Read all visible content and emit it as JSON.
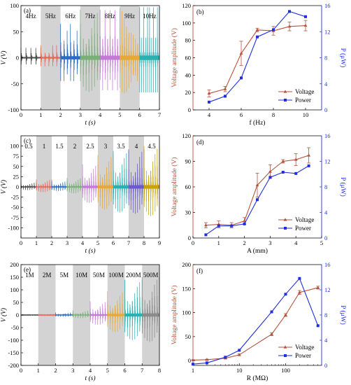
{
  "chart_data": [
    {
      "panel": "(a)",
      "type": "line",
      "xlabel": "t (s)",
      "ylabel": "V (V)",
      "xlim": [
        0,
        7
      ],
      "ylim": [
        -100,
        100
      ],
      "xticks": [
        0,
        1,
        2,
        3,
        4,
        5,
        6,
        7
      ],
      "yticks": [
        -100,
        -50,
        0,
        50,
        100
      ],
      "segments": [
        {
          "label": "4Hz",
          "t": [
            0,
            1
          ],
          "amplitude": 19,
          "bursts": 4,
          "color": "#505050",
          "shaded": false
        },
        {
          "label": "5Hz",
          "t": [
            1,
            2
          ],
          "amplitude": 24,
          "bursts": 5,
          "color": "#e46a5a",
          "shaded": true
        },
        {
          "label": "6Hz",
          "t": [
            2,
            3
          ],
          "amplitude": 65,
          "bursts": 6,
          "color": "#2c6cc4",
          "shaded": false
        },
        {
          "label": "7Hz",
          "t": [
            3,
            4
          ],
          "amplitude": 92,
          "bursts": 7,
          "color": "#78b078",
          "shaded": true
        },
        {
          "label": "8Hz",
          "t": [
            4,
            5
          ],
          "amplitude": 91,
          "bursts": 8,
          "color": "#c37ad6",
          "shaded": false
        },
        {
          "label": "9Hz",
          "t": [
            5,
            6
          ],
          "amplitude": 96,
          "bursts": 9,
          "color": "#e8a838",
          "shaded": true
        },
        {
          "label": "10Hz",
          "t": [
            6,
            7
          ],
          "amplitude": 97,
          "bursts": 10,
          "color": "#2ab0b0",
          "shaded": false
        }
      ]
    },
    {
      "panel": "(b)",
      "type": "line",
      "xlabel": "f (Hz)",
      "ylabel": "Voltage amplitude (V)",
      "y2label": "P (μW)",
      "x": [
        4,
        5,
        6,
        7,
        8,
        9,
        10
      ],
      "xlim": [
        3,
        11
      ],
      "xticks": [
        4,
        6,
        8,
        10
      ],
      "ylim": [
        0,
        120
      ],
      "yticks": [
        0,
        20,
        40,
        60,
        80,
        100,
        120
      ],
      "y2lim": [
        0,
        16
      ],
      "y2ticks": [
        0,
        4,
        8,
        12,
        16
      ],
      "legend_position": "lower right",
      "series": [
        {
          "name": "Voltage",
          "axis": "left",
          "color": "#b5533c",
          "marker": "triangle",
          "values": [
            19,
            24,
            65,
            92,
            91,
            96,
            97
          ],
          "error": [
            4,
            3,
            14,
            2,
            5,
            5,
            6
          ]
        },
        {
          "name": "Power",
          "axis": "right",
          "color": "#1f2ee0",
          "marker": "square",
          "values": [
            1.2,
            2.1,
            4.9,
            11.2,
            12.3,
            15.1,
            14.3
          ]
        }
      ]
    },
    {
      "panel": "(c)",
      "type": "line",
      "xlabel": "t (s)",
      "ylabel": "V (V)",
      "xlim": [
        0,
        9
      ],
      "ylim": [
        -125,
        125
      ],
      "xticks": [
        0,
        1,
        2,
        3,
        4,
        5,
        6,
        7,
        8,
        9
      ],
      "yticks": [
        -100,
        -75,
        -50,
        -25,
        0,
        25,
        50,
        75,
        100
      ],
      "segments": [
        {
          "label": "0.5",
          "t": [
            0,
            1
          ],
          "amplitude": 11,
          "bursts": 7,
          "color": "#505050",
          "shaded": false
        },
        {
          "label": "1",
          "t": [
            1,
            2
          ],
          "amplitude": 18,
          "bursts": 7,
          "color": "#e46a5a",
          "shaded": true
        },
        {
          "label": "1.5",
          "t": [
            2,
            3
          ],
          "amplitude": 14,
          "bursts": 7,
          "color": "#2c6cc4",
          "shaded": false
        },
        {
          "label": "2",
          "t": [
            3,
            4
          ],
          "amplitude": 22,
          "bursts": 7,
          "color": "#78b078",
          "shaded": true
        },
        {
          "label": "2.5",
          "t": [
            4,
            5
          ],
          "amplitude": 55,
          "bursts": 7,
          "color": "#c37ad6",
          "shaded": false
        },
        {
          "label": "3",
          "t": [
            5,
            6
          ],
          "amplitude": 78,
          "bursts": 7,
          "color": "#e8a838",
          "shaded": true
        },
        {
          "label": "3.5",
          "t": [
            6,
            7
          ],
          "amplitude": 88,
          "bursts": 7,
          "color": "#2ab0b0",
          "shaded": false
        },
        {
          "label": "4",
          "t": [
            7,
            8
          ],
          "amplitude": 92,
          "bursts": 7,
          "color": "#6a5acd",
          "shaded": true
        },
        {
          "label": "4.5",
          "t": [
            8,
            9
          ],
          "amplitude": 100,
          "bursts": 7,
          "color": "#c8a20c",
          "shaded": false
        }
      ]
    },
    {
      "panel": "(d)",
      "type": "line",
      "xlabel": "A (mm)",
      "ylabel": "Voltage amplitude (V)",
      "y2label": "P (μW)",
      "x": [
        0.5,
        1.0,
        1.5,
        2.0,
        2.5,
        3.0,
        3.5,
        4.0,
        4.5
      ],
      "xlim": [
        0,
        5
      ],
      "xticks": [
        0,
        1,
        2,
        3,
        4,
        5
      ],
      "ylim": [
        0,
        120
      ],
      "yticks": [
        0,
        30,
        60,
        90,
        120
      ],
      "y2lim": [
        0,
        16
      ],
      "y2ticks": [
        0,
        4,
        8,
        12,
        16
      ],
      "legend_position": "lower right",
      "series": [
        {
          "name": "Voltage",
          "axis": "left",
          "color": "#b5533c",
          "marker": "triangle",
          "values": [
            15,
            16,
            15,
            20,
            62,
            78,
            90,
            92,
            97
          ],
          "error": [
            3,
            4,
            3,
            4,
            14,
            8,
            2,
            7,
            9
          ]
        },
        {
          "name": "Power",
          "axis": "right",
          "color": "#1f2ee0",
          "marker": "square",
          "values": [
            0.5,
            1.9,
            1.9,
            2.2,
            6.0,
            9.5,
            10.3,
            10.1,
            11.3
          ]
        }
      ]
    },
    {
      "panel": "(e)",
      "type": "line",
      "xlabel": "t (s)",
      "ylabel": "V (V)",
      "xlim": [
        0,
        8
      ],
      "ylim": [
        -200,
        200
      ],
      "xticks": [
        0,
        1,
        2,
        3,
        4,
        5,
        6,
        7,
        8
      ],
      "yticks": [
        -200,
        -150,
        -100,
        -50,
        0,
        50,
        100,
        150,
        200
      ],
      "segments": [
        {
          "label": "1M",
          "t": [
            0,
            1
          ],
          "amplitude": 2,
          "bursts": 7,
          "color": "#505050",
          "shaded": false
        },
        {
          "label": "2M",
          "t": [
            1,
            2
          ],
          "amplitude": 4,
          "bursts": 7,
          "color": "#e46a5a",
          "shaded": true
        },
        {
          "label": "5M",
          "t": [
            2,
            3
          ],
          "amplitude": 10,
          "bursts": 7,
          "color": "#2c6cc4",
          "shaded": false
        },
        {
          "label": "10M",
          "t": [
            3,
            4
          ],
          "amplitude": 18,
          "bursts": 7,
          "color": "#78b078",
          "shaded": true
        },
        {
          "label": "50M",
          "t": [
            4,
            5
          ],
          "amplitude": 55,
          "bursts": 7,
          "color": "#c37ad6",
          "shaded": false
        },
        {
          "label": "100M",
          "t": [
            5,
            6
          ],
          "amplitude": 95,
          "bursts": 7,
          "color": "#e8a838",
          "shaded": true
        },
        {
          "label": "200M",
          "t": [
            6,
            7
          ],
          "amplitude": 140,
          "bursts": 7,
          "color": "#2ab0b0",
          "shaded": false
        },
        {
          "label": "500M",
          "t": [
            7,
            8
          ],
          "amplitude": 150,
          "bursts": 7,
          "color": "#8a8a8a",
          "shaded": true
        }
      ]
    },
    {
      "panel": "(f)",
      "type": "line",
      "xscale": "log",
      "xlabel": "R (MΩ)",
      "ylabel": "Voltage amplitude (V)",
      "y2label": "P (μW)",
      "x": [
        1,
        2,
        5,
        10,
        50,
        100,
        200,
        500
      ],
      "xlim": [
        1,
        600
      ],
      "xticks": [
        1,
        10,
        100
      ],
      "ylim": [
        -10,
        200
      ],
      "yticks": [
        0,
        50,
        100,
        150,
        200
      ],
      "y2lim": [
        0,
        16
      ],
      "y2ticks": [
        0,
        4,
        8,
        12,
        16
      ],
      "legend_position": "lower right",
      "series": [
        {
          "name": "Voltage",
          "axis": "left",
          "color": "#b5533c",
          "marker": "triangle",
          "values": [
            1,
            2,
            5,
            12,
            55,
            95,
            142,
            152
          ],
          "error": [
            1,
            1,
            1,
            2,
            3,
            3,
            4,
            3
          ]
        },
        {
          "name": "Power",
          "axis": "right",
          "color": "#1f2ee0",
          "marker": "square",
          "values": [
            0.2,
            0.4,
            1.3,
            2.4,
            8.5,
            11.3,
            13.8,
            6.3
          ]
        }
      ]
    }
  ]
}
